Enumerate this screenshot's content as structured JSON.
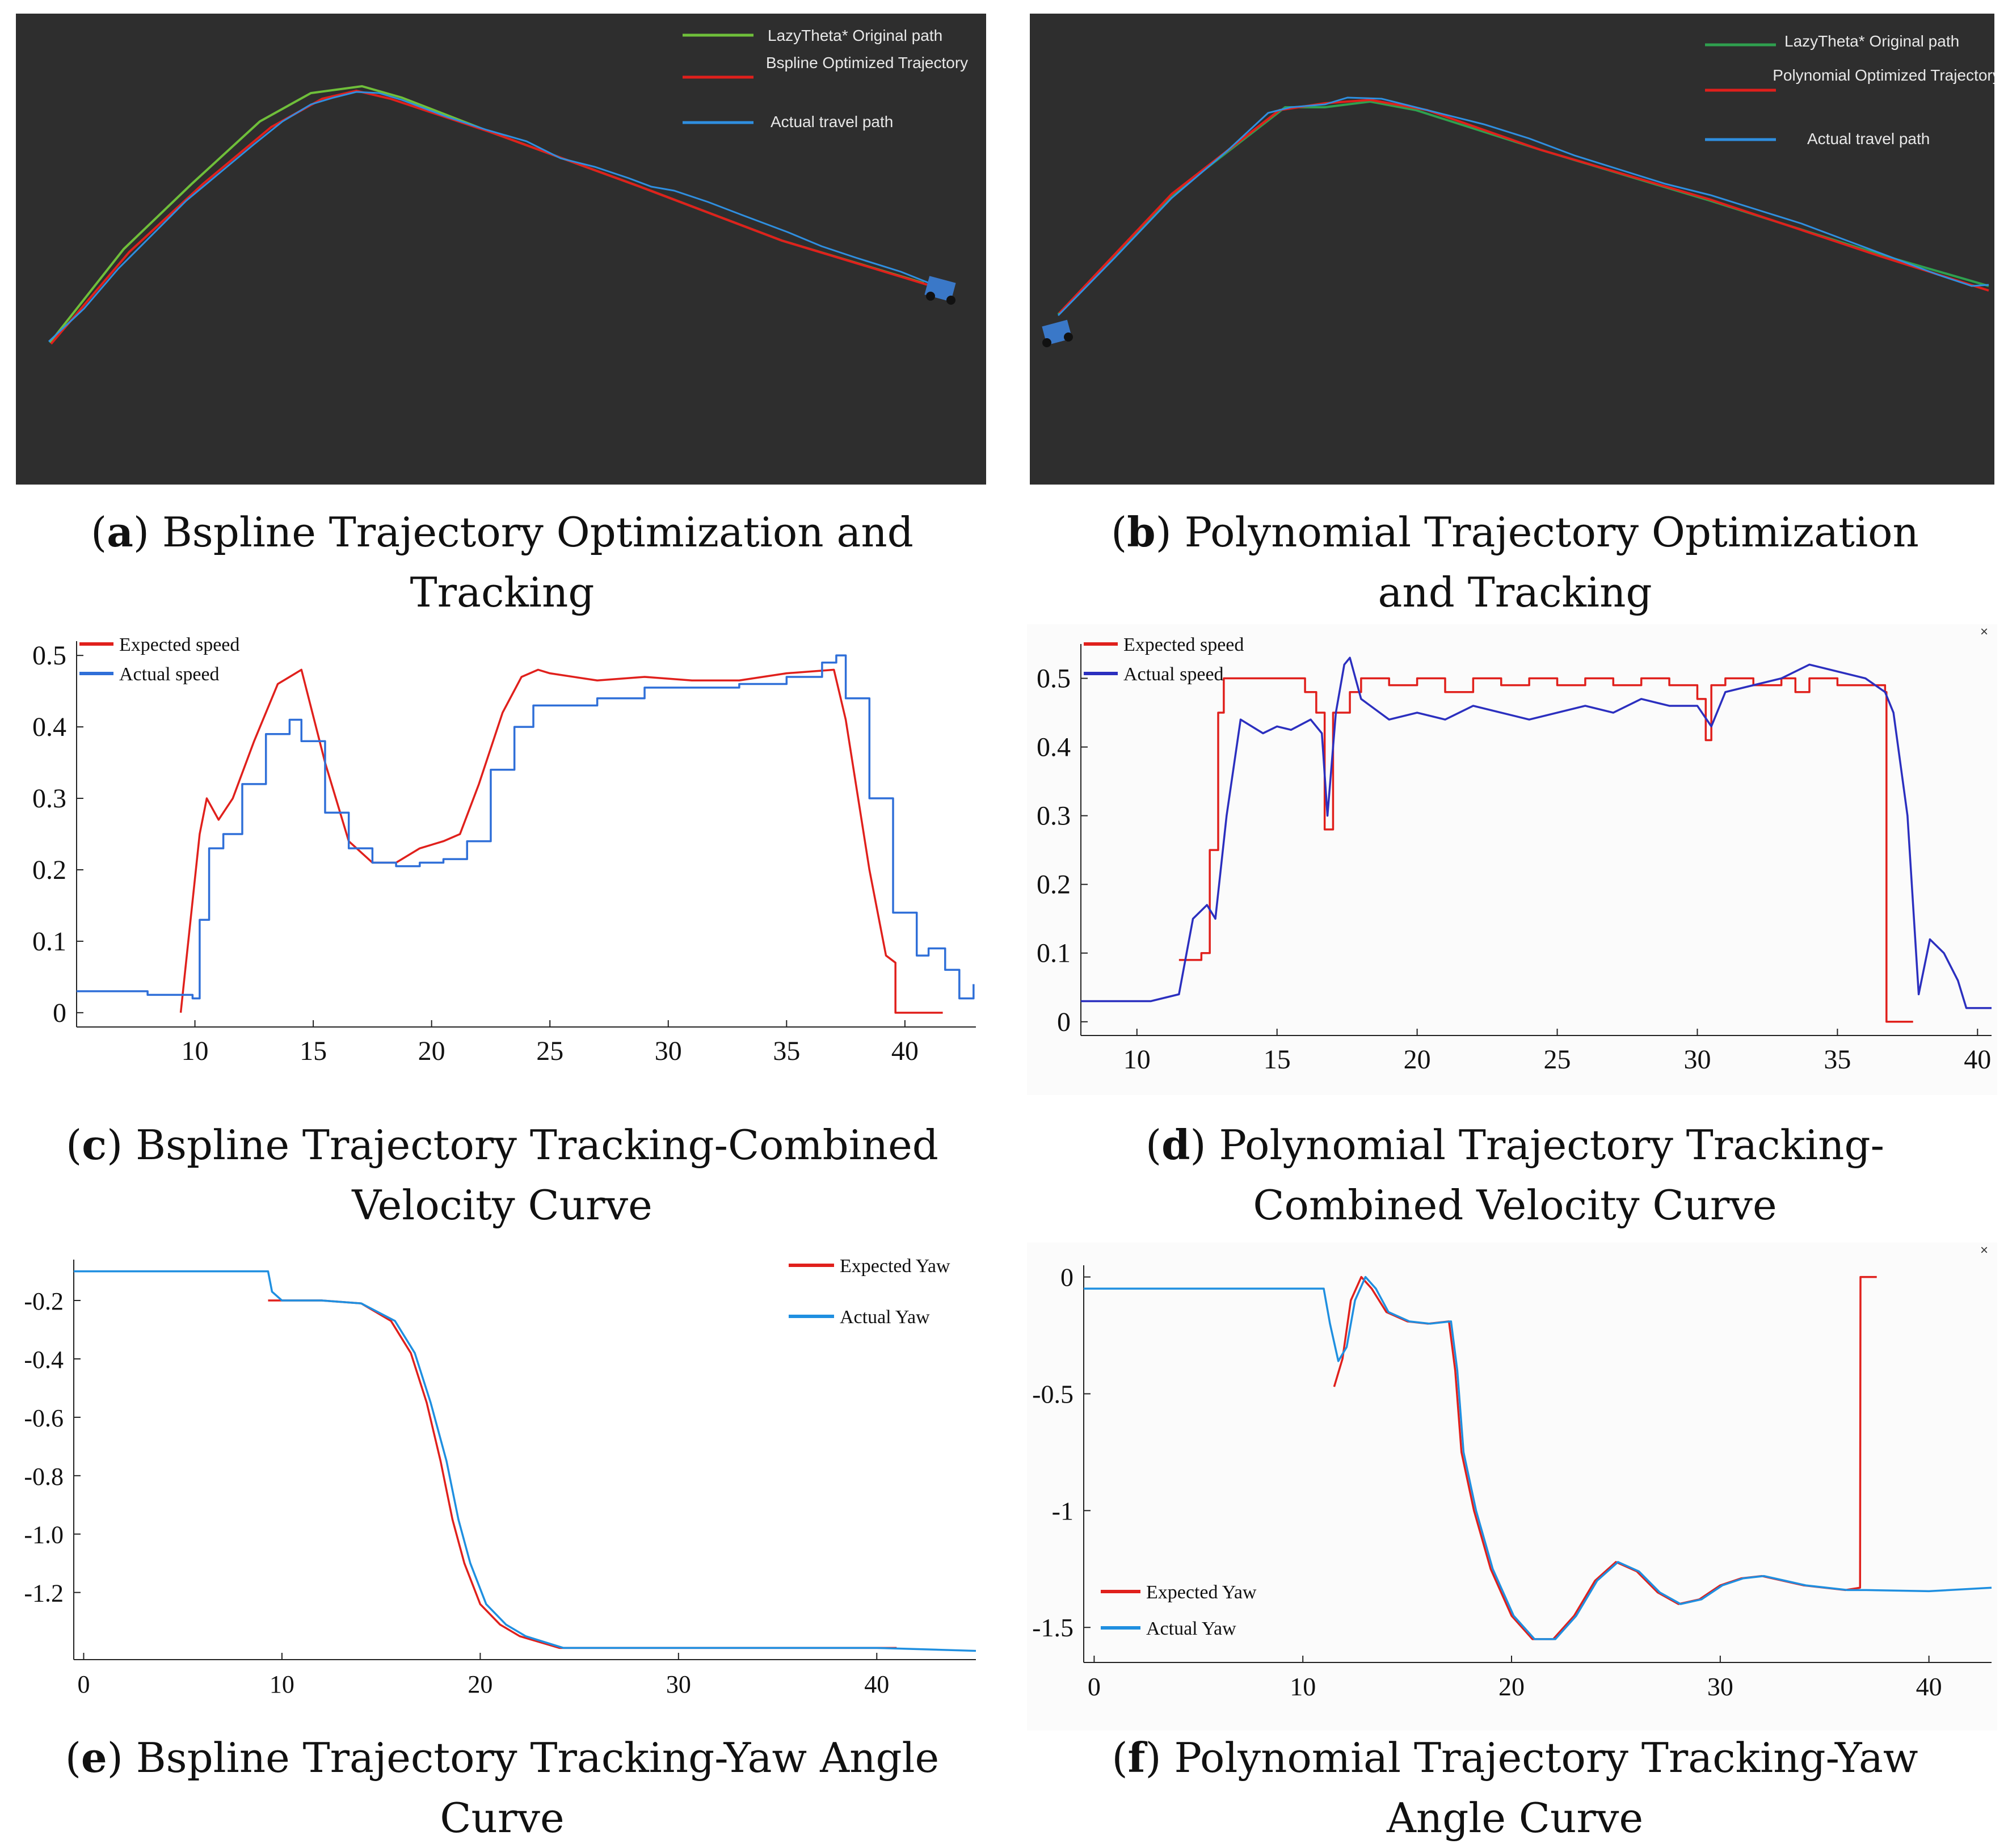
{
  "colors": {
    "green": "#6fbf3a",
    "green_b": "#2fa04f",
    "red": "#e0201c",
    "blue": "#2f6fd8",
    "navy": "#2b2fbf",
    "light_blue": "#1f8fe0",
    "dark_bg": "#2e2e2e"
  },
  "panels": {
    "a": {
      "legend": [
        "LazyTheta* Original path",
        "Bspline Optimized Trajectory",
        "Actual travel path"
      ],
      "caption_letter": "a",
      "caption_text": "Bspline Trajectory Optimization and Tracking"
    },
    "b": {
      "legend": [
        "LazyTheta* Original path",
        "Polynomial Optimized Trajectory",
        "Actual travel path"
      ],
      "caption_letter": "b",
      "caption_text": "Polynomial Trajectory Optimization and Tracking"
    },
    "c": {
      "caption_letter": "c",
      "caption_text": "Bspline Trajectory Tracking-Combined Velocity Curve"
    },
    "d": {
      "caption_letter": "d",
      "caption_text": "Polynomial Trajectory Tracking-Combined Velocity Curve",
      "close": "×"
    },
    "e": {
      "caption_letter": "e",
      "caption_text": "Bspline Trajectory Tracking-Yaw Angle Curve"
    },
    "f": {
      "caption_letter": "f",
      "caption_text": "Polynomial Trajectory Tracking-Yaw Angle Curve",
      "close": "×"
    }
  },
  "chart_data": [
    {
      "id": "c",
      "type": "line",
      "title": "",
      "xlabel": "",
      "ylabel": "",
      "xlim": [
        5,
        43
      ],
      "ylim": [
        -0.02,
        0.52
      ],
      "grid": false,
      "legend_position": "top-left",
      "xticks": [
        10,
        15,
        20,
        25,
        30,
        35,
        40
      ],
      "yticks": [
        0,
        0.1,
        0.2,
        0.3,
        0.4,
        0.5
      ],
      "series": [
        {
          "name": "Expected speed",
          "color": "red",
          "step": false,
          "x": [
            9.4,
            10.2,
            10.5,
            11,
            11.6,
            12.5,
            13.5,
            14.5,
            15.5,
            16.5,
            17.5,
            18.5,
            19.5,
            20.5,
            21.2,
            22,
            23,
            23.8,
            24.5,
            25,
            27,
            29,
            31,
            33,
            35,
            37,
            37.5,
            38.5,
            39.2,
            39.6,
            39.6,
            41.6
          ],
          "y": [
            0.0,
            0.25,
            0.3,
            0.27,
            0.3,
            0.38,
            0.46,
            0.48,
            0.35,
            0.24,
            0.21,
            0.21,
            0.23,
            0.24,
            0.25,
            0.32,
            0.42,
            0.47,
            0.48,
            0.475,
            0.465,
            0.47,
            0.465,
            0.465,
            0.475,
            0.48,
            0.41,
            0.2,
            0.08,
            0.07,
            0.0,
            0.0
          ]
        },
        {
          "name": "Actual speed",
          "color": "blue",
          "step": true,
          "x": [
            5,
            8,
            9.5,
            9.9,
            10.2,
            10.6,
            11.2,
            12,
            13,
            14,
            14.5,
            15.5,
            16.5,
            17.5,
            18.5,
            19.5,
            20.5,
            21.5,
            22.5,
            23.5,
            24.3,
            25,
            27,
            29,
            31,
            33,
            35,
            36.5,
            37.1,
            37.5,
            38.5,
            39.5,
            40.5,
            41,
            41.7,
            42.3,
            42.9
          ],
          "y": [
            0.03,
            0.025,
            0.025,
            0.02,
            0.13,
            0.23,
            0.25,
            0.32,
            0.39,
            0.41,
            0.38,
            0.28,
            0.23,
            0.21,
            0.205,
            0.21,
            0.215,
            0.24,
            0.34,
            0.4,
            0.43,
            0.43,
            0.44,
            0.455,
            0.455,
            0.46,
            0.47,
            0.49,
            0.5,
            0.44,
            0.3,
            0.14,
            0.08,
            0.09,
            0.06,
            0.02,
            0.04
          ]
        }
      ]
    },
    {
      "id": "d",
      "type": "line",
      "title": "",
      "xlabel": "",
      "ylabel": "",
      "xlim": [
        8,
        40.5
      ],
      "ylim": [
        -0.02,
        0.55
      ],
      "grid": false,
      "legend_position": "top-left",
      "xticks": [
        10,
        15,
        20,
        25,
        30,
        35,
        40
      ],
      "yticks": [
        0,
        0.1,
        0.2,
        0.3,
        0.4,
        0.5
      ],
      "series": [
        {
          "name": "Expected speed",
          "color": "red",
          "step": true,
          "x": [
            11.5,
            12.3,
            12.6,
            12.9,
            13.1,
            15.8,
            16,
            16.4,
            16.7,
            17,
            17.6,
            18,
            19,
            20,
            21,
            22,
            23,
            24,
            25,
            26,
            27,
            28,
            29,
            30,
            30.3,
            30.5,
            31,
            32,
            33,
            33.5,
            34,
            35,
            36,
            36.7,
            36.75,
            37.7
          ],
          "y": [
            0.09,
            0.1,
            0.25,
            0.45,
            0.5,
            0.5,
            0.48,
            0.45,
            0.28,
            0.45,
            0.48,
            0.5,
            0.49,
            0.5,
            0.48,
            0.5,
            0.49,
            0.5,
            0.49,
            0.5,
            0.49,
            0.5,
            0.49,
            0.47,
            0.41,
            0.49,
            0.5,
            0.49,
            0.5,
            0.48,
            0.5,
            0.49,
            0.49,
            0.48,
            0.0,
            0.0
          ]
        },
        {
          "name": "Actual speed",
          "color": "navy",
          "step": false,
          "x": [
            8,
            10.5,
            11.5,
            12,
            12.5,
            12.8,
            13.2,
            13.7,
            14.5,
            15,
            15.5,
            16.2,
            16.6,
            16.8,
            17.1,
            17.4,
            17.6,
            18,
            19,
            20,
            21,
            22,
            23,
            24,
            25,
            26,
            27,
            28,
            29,
            30,
            30.5,
            31,
            32,
            33,
            34,
            35,
            36,
            36.7,
            37,
            37.5,
            37.9,
            38.3,
            38.8,
            39.3,
            39.6,
            40.5
          ],
          "y": [
            0.03,
            0.03,
            0.04,
            0.15,
            0.17,
            0.15,
            0.3,
            0.44,
            0.42,
            0.43,
            0.425,
            0.44,
            0.42,
            0.3,
            0.45,
            0.52,
            0.53,
            0.47,
            0.44,
            0.45,
            0.44,
            0.46,
            0.45,
            0.44,
            0.45,
            0.46,
            0.45,
            0.47,
            0.46,
            0.46,
            0.43,
            0.48,
            0.49,
            0.5,
            0.52,
            0.51,
            0.5,
            0.48,
            0.45,
            0.3,
            0.04,
            0.12,
            0.1,
            0.06,
            0.02,
            0.02
          ]
        }
      ]
    },
    {
      "id": "e",
      "type": "line",
      "title": "",
      "xlabel": "",
      "ylabel": "",
      "xlim": [
        -0.5,
        45
      ],
      "ylim": [
        -1.43,
        -0.06
      ],
      "grid": false,
      "legend_position": "top-right",
      "xticks": [
        0,
        10,
        20,
        30,
        40
      ],
      "yticks": [
        -0.2,
        -0.4,
        -0.6,
        -0.8,
        -1.0,
        -1.2
      ],
      "series": [
        {
          "name": "Expected Yaw",
          "color": "red",
          "step": false,
          "x": [
            9.3,
            12,
            14,
            15.5,
            16.5,
            17.3,
            18,
            18.6,
            19.2,
            20,
            21,
            22,
            24,
            30,
            35,
            41
          ],
          "y": [
            -0.2,
            -0.2,
            -0.21,
            -0.27,
            -0.38,
            -0.55,
            -0.75,
            -0.95,
            -1.1,
            -1.24,
            -1.31,
            -1.35,
            -1.39,
            -1.39,
            -1.39,
            -1.39
          ]
        },
        {
          "name": "Actual Yaw",
          "color": "light_blue",
          "step": false,
          "x": [
            -0.5,
            9.3,
            9.5,
            10,
            12,
            14,
            15.7,
            16.7,
            17.5,
            18.3,
            18.9,
            19.5,
            20.3,
            21.3,
            22.3,
            24.2,
            30,
            40,
            45
          ],
          "y": [
            -0.1,
            -0.1,
            -0.17,
            -0.2,
            -0.2,
            -0.21,
            -0.27,
            -0.38,
            -0.55,
            -0.75,
            -0.95,
            -1.1,
            -1.24,
            -1.31,
            -1.35,
            -1.39,
            -1.39,
            -1.39,
            -1.4
          ]
        }
      ]
    },
    {
      "id": "f",
      "type": "line",
      "title": "",
      "xlabel": "",
      "ylabel": "",
      "xlim": [
        -0.5,
        43
      ],
      "ylim": [
        -1.65,
        0.05
      ],
      "grid": false,
      "legend_position": "bottom-left",
      "xticks": [
        0,
        10,
        20,
        30,
        40
      ],
      "yticks": [
        0,
        -0.5,
        -1.0,
        -1.5
      ],
      "series": [
        {
          "name": "Expected Yaw",
          "color": "red",
          "step": false,
          "x": [
            11.5,
            11.9,
            12.3,
            12.8,
            13.3,
            14,
            15,
            16,
            17,
            17.3,
            17.6,
            18.2,
            19,
            20,
            21,
            22,
            23,
            24,
            25,
            26,
            27,
            28,
            29,
            30,
            31,
            32,
            33,
            34,
            35,
            36,
            36.7,
            36.72,
            37.5
          ],
          "y": [
            -0.47,
            -0.35,
            -0.1,
            0.0,
            -0.05,
            -0.15,
            -0.19,
            -0.2,
            -0.19,
            -0.4,
            -0.75,
            -1.0,
            -1.25,
            -1.45,
            -1.55,
            -1.55,
            -1.45,
            -1.3,
            -1.22,
            -1.26,
            -1.35,
            -1.4,
            -1.38,
            -1.32,
            -1.29,
            -1.28,
            -1.3,
            -1.32,
            -1.33,
            -1.34,
            -1.33,
            0.0,
            0.0
          ]
        },
        {
          "name": "Actual Yaw",
          "color": "light_blue",
          "step": false,
          "x": [
            -0.5,
            11,
            11.3,
            11.7,
            12.1,
            12.5,
            13,
            13.5,
            14.1,
            15.1,
            16.1,
            17.1,
            17.4,
            17.7,
            18.3,
            19.1,
            20.1,
            21.1,
            22.1,
            23.1,
            24.1,
            25.1,
            26.1,
            27.1,
            28.1,
            29.1,
            30.1,
            31.1,
            32.1,
            33.1,
            34.1,
            35.1,
            36.1,
            37,
            40,
            43
          ],
          "y": [
            -0.05,
            -0.05,
            -0.2,
            -0.36,
            -0.3,
            -0.1,
            0.0,
            -0.05,
            -0.15,
            -0.19,
            -0.2,
            -0.19,
            -0.4,
            -0.75,
            -1.0,
            -1.25,
            -1.45,
            -1.55,
            -1.55,
            -1.45,
            -1.3,
            -1.22,
            -1.26,
            -1.35,
            -1.4,
            -1.38,
            -1.32,
            -1.29,
            -1.28,
            -1.3,
            -1.32,
            -1.33,
            -1.34,
            -1.34,
            -1.345,
            -1.33
          ]
        }
      ]
    }
  ]
}
